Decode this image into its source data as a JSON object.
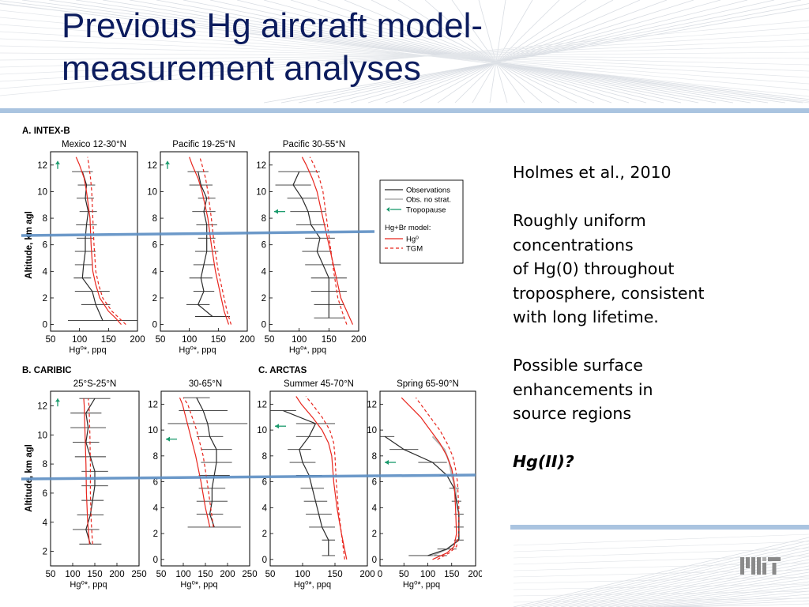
{
  "slide": {
    "title_lines": [
      "Previous Hg aircraft model-",
      "measurement analyses"
    ],
    "notes": [
      {
        "lines": [
          "Holmes et al., 2010"
        ]
      },
      {
        "lines": [
          "Roughly uniform",
          "concentrations",
          "of Hg(0) throughout",
          "troposphere, consistent",
          "with long lifetime."
        ]
      },
      {
        "lines": [
          "Possible surface",
          "enhancements in",
          "source regions"
        ]
      },
      {
        "lines": [
          "Hg(II)?"
        ],
        "style": "bold-italic"
      }
    ],
    "logo_text": "MIT",
    "colors": {
      "title": "#0c1c5e",
      "accent_bar": "#aac4e0",
      "model": "#e8261e",
      "observations": "#2b2b2b",
      "obs_no_strat": "#9c9c9c",
      "tropopause": "#1a9a6c",
      "highlight_line": "#5d8fc4"
    }
  },
  "chart_data": {
    "type": "line",
    "section_labels": {
      "A": "A. INTEX-B",
      "B": "B. CARIBIC",
      "C": "C. ARCTAS"
    },
    "ylabel": "Altitude, km agl",
    "xlabel": "Hg⁰*, ppq",
    "legend": {
      "observations": "Observations",
      "obs_no_strat": "Obs. no strat.",
      "tropopause": "Tropopause",
      "model_header": "Hg+Br model:",
      "hg0": "Hg⁰",
      "tgm": "TGM"
    },
    "reference_altitude_km": 7,
    "panels": [
      {
        "title": "Mexico 12-30°N",
        "xlim": [
          50,
          200
        ],
        "xticks": [
          50,
          100,
          150,
          200
        ],
        "yticks": [
          0,
          2,
          4,
          6,
          8,
          10,
          12
        ],
        "ylim": [
          -0.5,
          13
        ],
        "tropopause_km": 12.3,
        "observations": {
          "alt": [
            0.3,
            1.5,
            2.5,
            3.5,
            4.5,
            5.5,
            6.5,
            7.5,
            8.5,
            9.5,
            10.5,
            11.5
          ],
          "hg": [
            140,
            128,
            122,
            105,
            107,
            110,
            110,
            112,
            115,
            110,
            112,
            105
          ],
          "err": [
            60,
            25,
            30,
            15,
            15,
            18,
            15,
            18,
            15,
            15,
            15,
            18
          ]
        },
        "model_hg0": {
          "alt": [
            0,
            0.5,
            1,
            2,
            3,
            4,
            6,
            8,
            10,
            11,
            12,
            12.6
          ],
          "hg": [
            172,
            162,
            150,
            135,
            128,
            123,
            120,
            118,
            112,
            108,
            100,
            94
          ]
        },
        "model_tgm": {
          "alt": [
            0,
            0.5,
            1,
            2,
            3,
            4,
            6,
            8,
            10,
            11,
            12,
            12.6
          ],
          "hg": [
            180,
            168,
            156,
            140,
            133,
            128,
            125,
            123,
            121,
            119,
            116,
            114
          ]
        }
      },
      {
        "title": "Pacific 19-25°N",
        "xlim": [
          50,
          200
        ],
        "xticks": [
          50,
          100,
          150,
          200
        ],
        "yticks": [
          0,
          2,
          4,
          6,
          8,
          10,
          12
        ],
        "ylim": [
          -0.5,
          13
        ],
        "tropopause_km": 12.3,
        "observations": {
          "alt": [
            0.6,
            1.5,
            2.5,
            3.5,
            4.5,
            5.5,
            6.5,
            7.5,
            8.5,
            9.5,
            10.5,
            11.5
          ],
          "hg": [
            140,
            115,
            125,
            120,
            125,
            130,
            130,
            130,
            125,
            130,
            120,
            115
          ],
          "err": [
            30,
            20,
            18,
            20,
            18,
            20,
            15,
            18,
            20,
            15,
            20,
            18
          ]
        },
        "model_hg0": {
          "alt": [
            0,
            1,
            2,
            4,
            6,
            8,
            10,
            11,
            12,
            12.6
          ],
          "hg": [
            168,
            160,
            155,
            145,
            138,
            132,
            122,
            115,
            105,
            100
          ]
        },
        "model_tgm": {
          "alt": [
            0,
            1,
            2,
            4,
            6,
            8,
            10,
            11,
            12,
            12.6
          ],
          "hg": [
            172,
            165,
            160,
            150,
            143,
            138,
            132,
            128,
            122,
            118
          ]
        }
      },
      {
        "title": "Pacific 30-55°N",
        "xlim": [
          50,
          200
        ],
        "xticks": [
          50,
          100,
          150,
          200
        ],
        "yticks": [
          0,
          2,
          4,
          6,
          8,
          10,
          12
        ],
        "ylim": [
          -0.5,
          13
        ],
        "tropopause_km": 8.5,
        "observations": {
          "alt": [
            0.5,
            1.5,
            2.5,
            3.5,
            4.5,
            5.5,
            6.5,
            7.5,
            8.5,
            9.5,
            10.5,
            11.5
          ],
          "hg": [
            150,
            150,
            150,
            150,
            140,
            130,
            135,
            120,
            115,
            105,
            90,
            100
          ],
          "err": [
            25,
            25,
            30,
            30,
            30,
            25,
            25,
            25,
            30,
            25,
            30,
            35
          ]
        },
        "model_hg0": {
          "alt": [
            0,
            1,
            2,
            4,
            6,
            8,
            10,
            11,
            12,
            12.6
          ],
          "hg": [
            190,
            180,
            170,
            160,
            150,
            140,
            130,
            122,
            112,
            105
          ]
        },
        "model_tgm": {
          "alt": [
            0,
            1,
            2,
            4,
            6,
            8,
            10,
            11,
            12,
            12.6
          ],
          "hg": [
            180,
            172,
            165,
            158,
            152,
            146,
            140,
            134,
            125,
            118
          ]
        }
      },
      {
        "title": "25°S-25°N",
        "xlim": [
          50,
          250
        ],
        "xticks": [
          50,
          100,
          150,
          200,
          250
        ],
        "yticks": [
          2,
          4,
          6,
          8,
          10,
          12
        ],
        "ylim": [
          1,
          13
        ],
        "tropopause_km": 12.5,
        "observations": {
          "alt": [
            2.5,
            3.5,
            4.5,
            5.5,
            6.5,
            7.5,
            8.5,
            9.5,
            10.5,
            11.5,
            12.5
          ],
          "hg": [
            140,
            130,
            140,
            145,
            150,
            150,
            140,
            130,
            135,
            130,
            150
          ],
          "err": [
            25,
            30,
            30,
            25,
            30,
            30,
            35,
            30,
            40,
            35,
            35
          ]
        },
        "model_hg0": {
          "alt": [
            2.5,
            4,
            6,
            8,
            10,
            12,
            12.5
          ],
          "hg": [
            138,
            134,
            131,
            130,
            128,
            126,
            125
          ]
        },
        "model_tgm": {
          "alt": [
            2.5,
            4,
            6,
            8,
            10,
            12,
            12.5
          ],
          "hg": [
            145,
            142,
            140,
            140,
            139,
            137,
            135
          ]
        }
      },
      {
        "title": "30-65°N",
        "xlim": [
          50,
          250
        ],
        "xticks": [
          50,
          100,
          150,
          200,
          250
        ],
        "yticks": [
          0,
          2,
          4,
          6,
          8,
          10,
          12
        ],
        "ylim": [
          -0.5,
          13
        ],
        "tropopause_km": 9.3,
        "observations": {
          "alt": [
            2.5,
            3.5,
            4.5,
            5.5,
            6.5,
            7.5,
            8.5,
            9.5,
            10.5,
            11.5,
            12.5
          ],
          "hg": [
            170,
            160,
            165,
            165,
            170,
            175,
            175,
            160,
            155,
            145,
            130
          ],
          "err": [
            60,
            30,
            35,
            30,
            35,
            35,
            35,
            30,
            90,
            55,
            30
          ]
        },
        "model_hg0": {
          "alt": [
            2.5,
            4,
            6,
            8,
            10,
            12,
            12.5
          ],
          "hg": [
            160,
            150,
            140,
            128,
            113,
            98,
            92
          ]
        },
        "model_tgm": {
          "alt": [
            2.5,
            4,
            6,
            8,
            10,
            12,
            12.5
          ],
          "hg": [
            168,
            162,
            154,
            145,
            130,
            110,
            100
          ]
        }
      },
      {
        "title": "Summer 45-70°N",
        "xlim": [
          50,
          200
        ],
        "xticks": [
          50,
          100,
          150,
          200
        ],
        "yticks": [
          0,
          2,
          4,
          6,
          8,
          10,
          12
        ],
        "ylim": [
          -0.5,
          13
        ],
        "tropopause_km": 10.3,
        "observations": {
          "alt": [
            0.3,
            1.5,
            2.5,
            3.5,
            4.5,
            5.5,
            6.5,
            7.5,
            8.5,
            9.5,
            10.5,
            11.5
          ],
          "hg": [
            140,
            140,
            130,
            125,
            120,
            115,
            110,
            100,
            95,
            110,
            120,
            70
          ],
          "err": [
            10,
            10,
            20,
            20,
            18,
            18,
            20,
            20,
            18,
            20,
            30,
            20
          ]
        },
        "model_hg0": {
          "alt": [
            0,
            2,
            4,
            6,
            8,
            9,
            10,
            11,
            12,
            12.6
          ],
          "hg": [
            168,
            160,
            153,
            148,
            145,
            140,
            130,
            115,
            98,
            90
          ]
        },
        "model_tgm": {
          "alt": [
            0,
            2,
            4,
            6,
            8,
            9,
            10,
            11,
            12,
            12.6
          ],
          "hg": [
            165,
            160,
            155,
            152,
            150,
            148,
            142,
            130,
            115,
            105
          ]
        }
      },
      {
        "title": "Spring 65-90°N",
        "xlim": [
          0,
          200
        ],
        "xticks": [
          0,
          50,
          100,
          150,
          200
        ],
        "yticks": [
          0,
          2,
          4,
          6,
          8,
          10,
          12
        ],
        "ylim": [
          -0.5,
          13
        ],
        "tropopause_km": 7.5,
        "observations": {
          "alt": [
            0.3,
            0.8,
            1.5,
            2.5,
            3.5,
            4.5,
            5.5,
            6.5,
            7.5,
            8.5,
            9.5
          ],
          "hg": [
            100,
            140,
            165,
            165,
            165,
            160,
            155,
            140,
            110,
            50,
            10
          ],
          "err": [
            40,
            20,
            10,
            10,
            10,
            10,
            10,
            15,
            30,
            30,
            20
          ]
        },
        "obs_no_strat": {
          "alt": [
            0.3,
            0.8,
            1.5,
            2.5,
            3.5,
            4.5,
            5.5,
            6.5,
            7.5,
            8.5,
            9.5
          ],
          "hg": [
            110,
            140,
            165,
            165,
            165,
            160,
            158,
            150,
            145,
            135,
            110
          ]
        },
        "model_hg0": {
          "alt": [
            0,
            0.5,
            1,
            2,
            4,
            6,
            7,
            8,
            9,
            10,
            11,
            12.5
          ],
          "hg": [
            110,
            140,
            155,
            160,
            158,
            155,
            150,
            140,
            125,
            105,
            85,
            45
          ]
        },
        "model_tgm": {
          "alt": [
            0,
            0.5,
            1,
            2,
            4,
            6,
            7,
            8,
            9,
            10,
            11,
            12.5
          ],
          "hg": [
            120,
            145,
            160,
            165,
            165,
            162,
            158,
            152,
            140,
            125,
            105,
            75
          ]
        }
      }
    ]
  }
}
